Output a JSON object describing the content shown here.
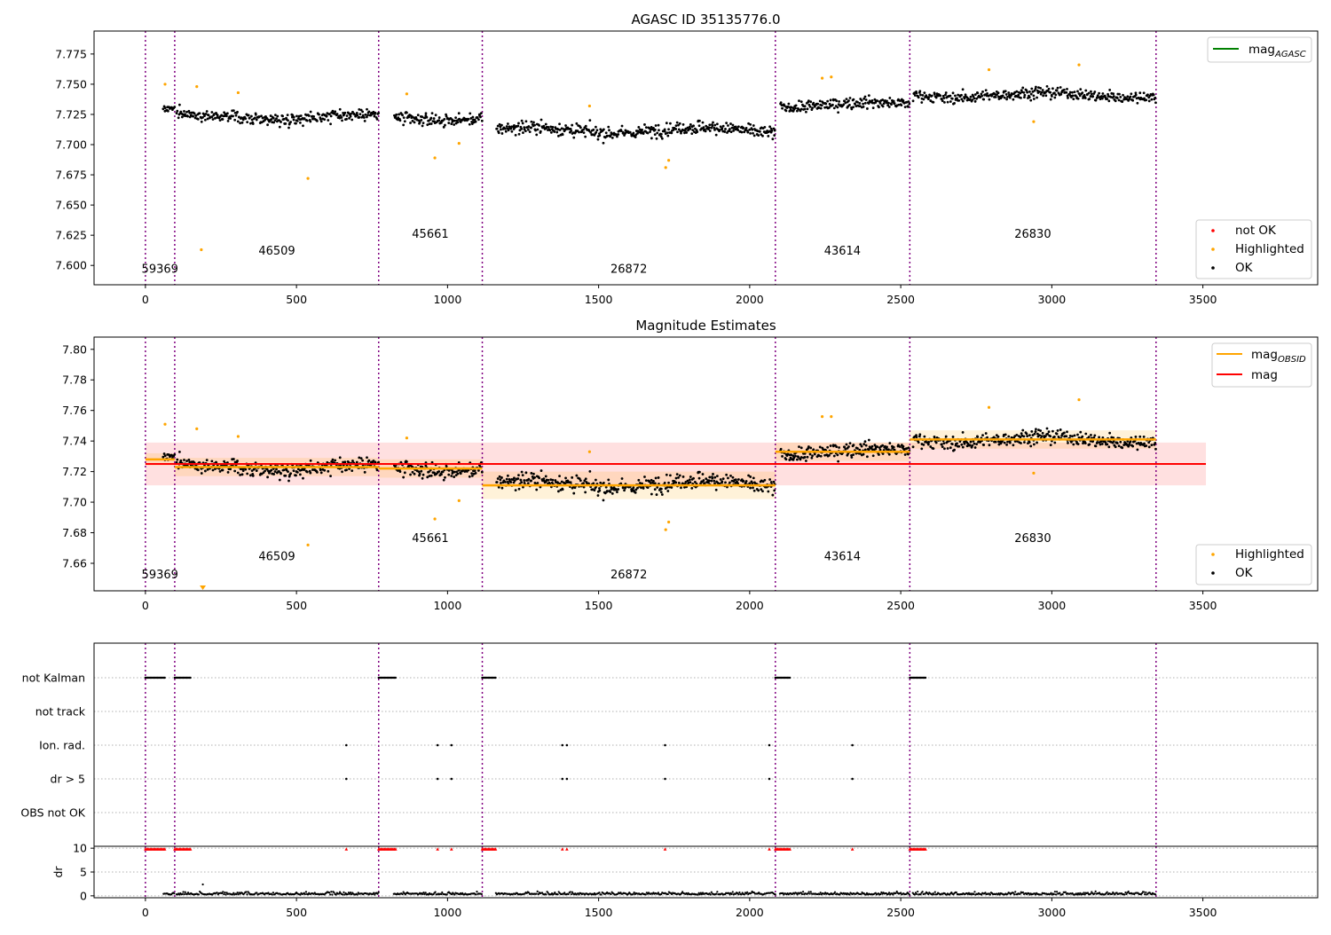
{
  "chart_data": [
    {
      "type": "scatter",
      "title": "AGASC ID 35135776.0",
      "xlim": [
        -170,
        3880
      ],
      "ylim": [
        7.584,
        7.794
      ],
      "xticks": [
        0,
        500,
        1000,
        1500,
        2000,
        2500,
        3000,
        3500
      ],
      "yticks": [
        7.6,
        7.625,
        7.65,
        7.675,
        7.7,
        7.725,
        7.75,
        7.775
      ],
      "ytick_labels": [
        "7.600",
        "7.625",
        "7.650",
        "7.675",
        "7.700",
        "7.725",
        "7.750",
        "7.775"
      ],
      "obsid_boundaries": [
        0,
        97,
        772,
        1115,
        2085,
        2530,
        3345
      ],
      "obsid_labels": [
        {
          "text": "59369",
          "x": 48,
          "y": 7.594
        },
        {
          "text": "46509",
          "x": 435,
          "y": 7.609
        },
        {
          "text": "45661",
          "x": 943,
          "y": 7.623
        },
        {
          "text": "26872",
          "x": 1600,
          "y": 7.594
        },
        {
          "text": "43614",
          "x": 2307,
          "y": 7.609
        },
        {
          "text": "26830",
          "x": 2937,
          "y": 7.623
        }
      ],
      "segments": [
        {
          "x0": 58,
          "x1": 97,
          "mean": 7.729,
          "sd": 0.004
        },
        {
          "x0": 103,
          "x1": 772,
          "mean": 7.723,
          "sd": 0.006
        },
        {
          "x0": 822,
          "x1": 1115,
          "mean": 7.722,
          "sd": 0.006
        },
        {
          "x0": 1160,
          "x1": 2085,
          "mean": 7.712,
          "sd": 0.007
        },
        {
          "x0": 2100,
          "x1": 2530,
          "mean": 7.733,
          "sd": 0.006
        },
        {
          "x0": 2540,
          "x1": 3345,
          "mean": 7.741,
          "sd": 0.006
        }
      ],
      "highlighted": [
        {
          "x": 65,
          "y": 7.75
        },
        {
          "x": 185,
          "y": 7.613
        },
        {
          "x": 170,
          "y": 7.748
        },
        {
          "x": 307,
          "y": 7.743
        },
        {
          "x": 538,
          "y": 7.672
        },
        {
          "x": 865,
          "y": 7.742
        },
        {
          "x": 958,
          "y": 7.689
        },
        {
          "x": 1038,
          "y": 7.701
        },
        {
          "x": 1470,
          "y": 7.732
        },
        {
          "x": 1722,
          "y": 7.681
        },
        {
          "x": 1732,
          "y": 7.687
        },
        {
          "x": 2240,
          "y": 7.755
        },
        {
          "x": 2270,
          "y": 7.756
        },
        {
          "x": 2792,
          "y": 7.762
        },
        {
          "x": 2940,
          "y": 7.719
        },
        {
          "x": 3090,
          "y": 7.766
        }
      ],
      "legend_lines": [
        {
          "label": "mag",
          "subscript": "AGASC",
          "color": "#008000"
        }
      ],
      "legend_points": [
        {
          "label": "not OK",
          "color": "#ff0000"
        },
        {
          "label": "Highlighted",
          "color": "#ffa500"
        },
        {
          "label": "OK",
          "color": "#000000"
        }
      ]
    },
    {
      "type": "scatter",
      "title": "Magnitude Estimates",
      "xlim": [
        -170,
        3880
      ],
      "ylim": [
        7.642,
        7.808
      ],
      "xticks": [
        0,
        500,
        1000,
        1500,
        2000,
        2500,
        3000,
        3500
      ],
      "yticks": [
        7.66,
        7.68,
        7.7,
        7.72,
        7.74,
        7.76,
        7.78,
        7.8
      ],
      "ytick_labels": [
        "7.66",
        "7.68",
        "7.70",
        "7.72",
        "7.74",
        "7.76",
        "7.78",
        "7.80"
      ],
      "obsid_boundaries": [
        0,
        97,
        772,
        1115,
        2085,
        2530,
        3345
      ],
      "obsid_labels": [
        {
          "text": "59369",
          "x": 48,
          "y": 7.65
        },
        {
          "text": "46509",
          "x": 435,
          "y": 7.662
        },
        {
          "text": "45661",
          "x": 943,
          "y": 7.674
        },
        {
          "text": "26872",
          "x": 1600,
          "y": 7.65
        },
        {
          "text": "43614",
          "x": 2307,
          "y": 7.662
        },
        {
          "text": "26830",
          "x": 2937,
          "y": 7.674
        }
      ],
      "mag_mean": 7.725,
      "mag_band": [
        7.711,
        7.739
      ],
      "mag_xrange": [
        0,
        3510
      ],
      "segments": [
        {
          "x0": 0,
          "x1": 97,
          "mean": 7.728,
          "sd": 0.004
        },
        {
          "x0": 97,
          "x1": 772,
          "mean": 7.723,
          "sd": 0.006
        },
        {
          "x0": 772,
          "x1": 1115,
          "mean": 7.722,
          "sd": 0.006
        },
        {
          "x0": 1115,
          "x1": 2085,
          "mean": 7.711,
          "sd": 0.009
        },
        {
          "x0": 2085,
          "x1": 2530,
          "mean": 7.733,
          "sd": 0.006
        },
        {
          "x0": 2530,
          "x1": 3345,
          "mean": 7.741,
          "sd": 0.006
        }
      ],
      "highlighted": [
        {
          "x": 65,
          "y": 7.751
        },
        {
          "x": 170,
          "y": 7.748
        },
        {
          "x": 307,
          "y": 7.743
        },
        {
          "x": 538,
          "y": 7.672
        },
        {
          "x": 865,
          "y": 7.742
        },
        {
          "x": 958,
          "y": 7.689
        },
        {
          "x": 1038,
          "y": 7.701
        },
        {
          "x": 1470,
          "y": 7.733
        },
        {
          "x": 1722,
          "y": 7.682
        },
        {
          "x": 1732,
          "y": 7.687
        },
        {
          "x": 2240,
          "y": 7.756
        },
        {
          "x": 2270,
          "y": 7.756
        },
        {
          "x": 2792,
          "y": 7.762
        },
        {
          "x": 2940,
          "y": 7.719
        },
        {
          "x": 3090,
          "y": 7.767
        }
      ],
      "offscale_marker": {
        "x": 190,
        "y": 7.643,
        "color": "#ffa500"
      },
      "legend_lines": [
        {
          "label": "mag",
          "subscript": "OBSID",
          "color": "#ffa500"
        },
        {
          "label": "mag",
          "subscript": "",
          "color": "#ff0000"
        }
      ],
      "legend_points": [
        {
          "label": "Highlighted",
          "color": "#ffa500"
        },
        {
          "label": "OK",
          "color": "#000000"
        }
      ]
    },
    {
      "type": "scatter",
      "xlim": [
        -170,
        3880
      ],
      "xticks": [
        0,
        500,
        1000,
        1500,
        2000,
        2500,
        3000,
        3500
      ],
      "flag_rows": [
        "not Kalman",
        "not track",
        "Ion. rad.",
        "dr > 5",
        "OBS not OK"
      ],
      "obsid_boundaries": [
        0,
        97,
        772,
        1115,
        2085,
        2530,
        3345
      ],
      "not_kalman_ranges": [
        [
          0,
          65
        ],
        [
          97,
          150
        ],
        [
          772,
          830
        ],
        [
          1115,
          1160
        ],
        [
          2085,
          2135
        ],
        [
          2530,
          2585
        ]
      ],
      "ion_rad_x": [
        665,
        967,
        1013,
        1380,
        1395,
        1720,
        2065,
        2340
      ],
      "dr5_x": [
        665,
        967,
        1013,
        1380,
        1395,
        1720,
        2065,
        2340
      ],
      "dr_ylabel": "dr",
      "dr_yticks": [
        0,
        5,
        10
      ],
      "dr_ylim": [
        -0.4,
        10.4
      ]
    }
  ]
}
